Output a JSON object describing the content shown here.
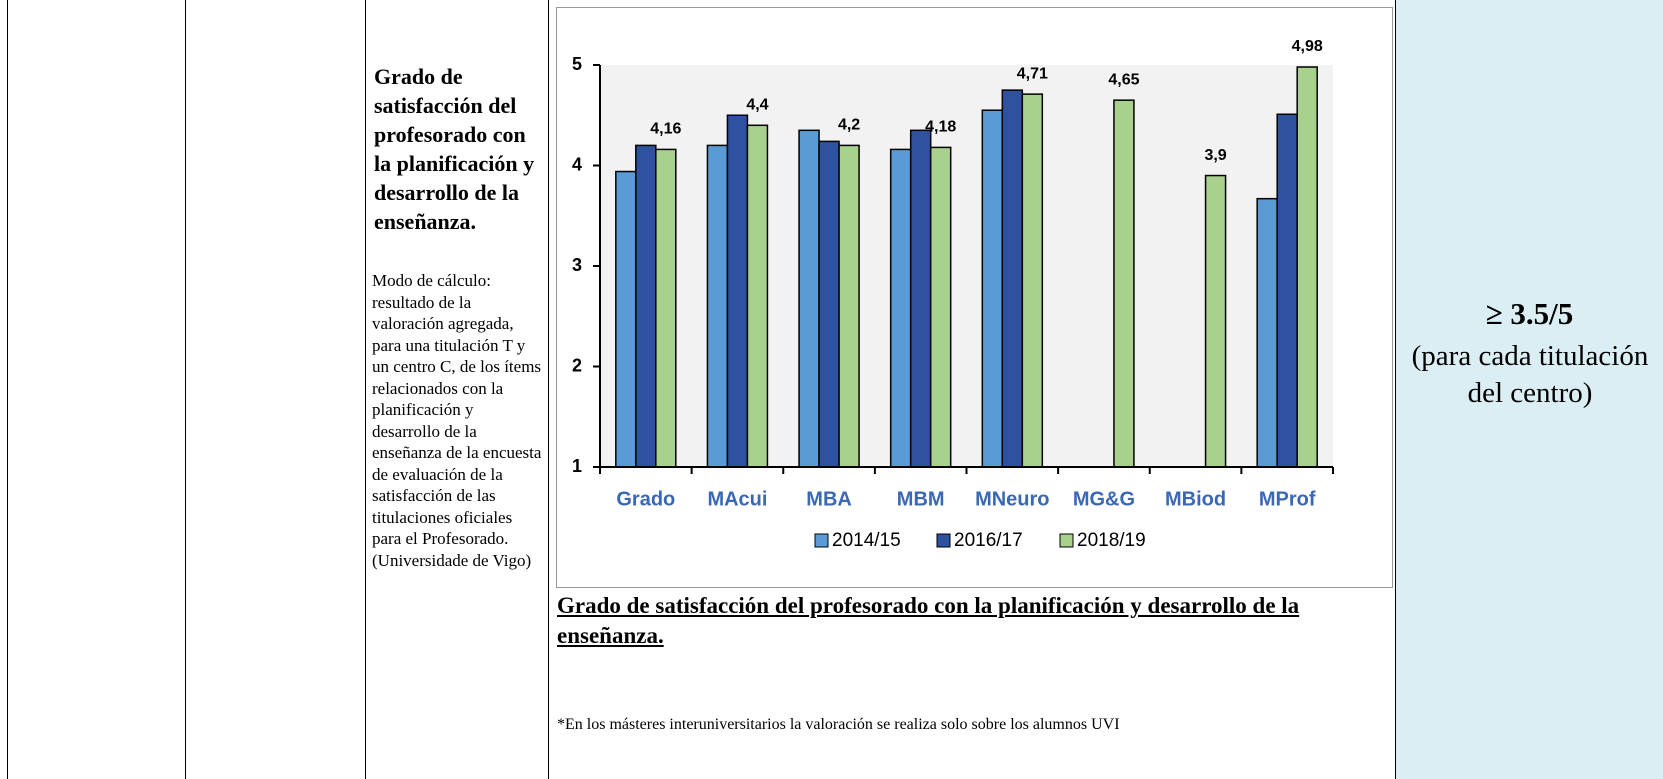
{
  "table": {
    "title": "Grado de satisfacción del profesorado con la planificación y desarrollo de la enseñanza.",
    "method": "Modo de cálculo: resultado de la valoración agregada, para una titulación T y un centro C, de los ítems relacionados con la planificación y desarrollo de la enseñanza de la encuesta de evaluación de la satisfacción de las titulaciones oficiales para el Profesorado.",
    "source": "(Universidade de Vigo)",
    "target": "≥ 3.5/5",
    "target_note": "(para cada titulación del centro)",
    "caption": "Grado de satisfacción del profesorado con la planificación y desarrollo de la enseñanza.",
    "footnote": "*En los másteres interuniversitarios la valoración se realiza solo sobre los alumnos UVI"
  },
  "chart_data": {
    "type": "bar",
    "categories": [
      "Grado",
      "MAcui",
      "MBA",
      "MBM",
      "MNeuro",
      "MG&G",
      "MBiod",
      "MProf"
    ],
    "series": [
      {
        "name": "2014/15",
        "color": "#5b9bd5",
        "values": [
          3.94,
          4.2,
          4.35,
          4.16,
          4.55,
          null,
          null,
          3.67
        ]
      },
      {
        "name": "2016/17",
        "color": "#2f52a0",
        "values": [
          4.2,
          4.5,
          4.24,
          4.35,
          4.75,
          null,
          null,
          4.51
        ]
      },
      {
        "name": "2018/19",
        "color": "#a9d18e",
        "values": [
          4.16,
          4.4,
          4.2,
          4.18,
          4.71,
          4.65,
          3.9,
          4.98
        ],
        "value_labels": [
          "4,16",
          "4,4",
          "4,2",
          "4,18",
          "4,71",
          "4,65",
          "3,9",
          "4,98"
        ]
      }
    ],
    "ylim": [
      1,
      5
    ],
    "yticks": [
      1,
      2,
      3,
      4,
      5
    ],
    "legend": "bottom"
  }
}
